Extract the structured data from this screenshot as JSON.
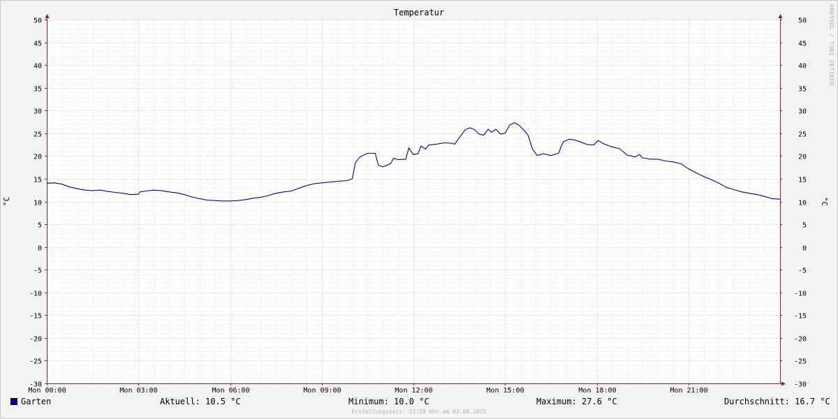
{
  "chart_data": {
    "type": "line",
    "title": "Temperatur",
    "ylabel": "°C",
    "xlabel": "",
    "ylim": [
      -30,
      50
    ],
    "yticks": [
      -30,
      -25,
      -20,
      -15,
      -10,
      -5,
      0,
      5,
      10,
      15,
      20,
      25,
      30,
      35,
      40,
      45,
      50
    ],
    "xlim_hours": [
      0,
      24
    ],
    "xticks": [
      {
        "hour": 0,
        "label": "Mon 00:00"
      },
      {
        "hour": 3,
        "label": "Mon 03:00"
      },
      {
        "hour": 6,
        "label": "Mon 06:00"
      },
      {
        "hour": 9,
        "label": "Mon 09:00"
      },
      {
        "hour": 12,
        "label": "Mon 12:00"
      },
      {
        "hour": 15,
        "label": "Mon 15:00"
      },
      {
        "hour": 18,
        "label": "Mon 18:00"
      },
      {
        "hour": 21,
        "label": "Mon 21:00"
      }
    ],
    "grid": true,
    "legend_position": "bottom-left",
    "series": [
      {
        "name": "Garten",
        "color": "#0000a0",
        "points": [
          [
            0.0,
            14.0
          ],
          [
            0.25,
            14.1
          ],
          [
            0.5,
            13.8
          ],
          [
            0.75,
            13.2
          ],
          [
            1.0,
            12.8
          ],
          [
            1.25,
            12.5
          ],
          [
            1.5,
            12.4
          ],
          [
            1.75,
            12.5
          ],
          [
            2.0,
            12.2
          ],
          [
            2.25,
            12.0
          ],
          [
            2.5,
            11.8
          ],
          [
            2.75,
            11.5
          ],
          [
            3.0,
            11.6
          ],
          [
            3.05,
            12.1
          ],
          [
            3.25,
            12.3
          ],
          [
            3.5,
            12.5
          ],
          [
            3.75,
            12.4
          ],
          [
            4.0,
            12.1
          ],
          [
            4.25,
            11.9
          ],
          [
            4.5,
            11.5
          ],
          [
            4.75,
            11.0
          ],
          [
            5.0,
            10.6
          ],
          [
            5.25,
            10.3
          ],
          [
            5.5,
            10.2
          ],
          [
            5.75,
            10.1
          ],
          [
            6.0,
            10.1
          ],
          [
            6.25,
            10.2
          ],
          [
            6.5,
            10.4
          ],
          [
            6.75,
            10.7
          ],
          [
            7.0,
            10.9
          ],
          [
            7.25,
            11.3
          ],
          [
            7.5,
            11.8
          ],
          [
            7.75,
            12.1
          ],
          [
            8.0,
            12.3
          ],
          [
            8.25,
            12.9
          ],
          [
            8.5,
            13.5
          ],
          [
            8.75,
            13.9
          ],
          [
            9.0,
            14.1
          ],
          [
            9.5,
            14.4
          ],
          [
            9.85,
            14.6
          ],
          [
            10.0,
            15.0
          ],
          [
            10.1,
            18.5
          ],
          [
            10.25,
            19.8
          ],
          [
            10.5,
            20.6
          ],
          [
            10.75,
            20.6
          ],
          [
            10.85,
            18.0
          ],
          [
            11.0,
            17.6
          ],
          [
            11.25,
            18.3
          ],
          [
            11.35,
            19.5
          ],
          [
            11.5,
            19.2
          ],
          [
            11.75,
            19.3
          ],
          [
            11.85,
            21.8
          ],
          [
            12.0,
            20.3
          ],
          [
            12.15,
            20.5
          ],
          [
            12.25,
            22.2
          ],
          [
            12.4,
            21.5
          ],
          [
            12.5,
            22.4
          ],
          [
            12.75,
            22.6
          ],
          [
            13.0,
            22.9
          ],
          [
            13.25,
            22.8
          ],
          [
            13.35,
            22.6
          ],
          [
            13.5,
            24.0
          ],
          [
            13.7,
            25.8
          ],
          [
            13.85,
            26.2
          ],
          [
            14.0,
            25.8
          ],
          [
            14.15,
            24.8
          ],
          [
            14.3,
            24.6
          ],
          [
            14.45,
            25.9
          ],
          [
            14.55,
            25.2
          ],
          [
            14.7,
            25.9
          ],
          [
            14.85,
            24.8
          ],
          [
            15.0,
            25.0
          ],
          [
            15.15,
            26.8
          ],
          [
            15.3,
            27.3
          ],
          [
            15.45,
            26.8
          ],
          [
            15.6,
            25.8
          ],
          [
            15.75,
            24.6
          ],
          [
            15.9,
            21.5
          ],
          [
            16.05,
            20.1
          ],
          [
            16.25,
            20.5
          ],
          [
            16.5,
            20.1
          ],
          [
            16.75,
            20.6
          ],
          [
            16.9,
            23.1
          ],
          [
            17.1,
            23.7
          ],
          [
            17.3,
            23.5
          ],
          [
            17.5,
            23.0
          ],
          [
            17.7,
            22.5
          ],
          [
            17.9,
            22.4
          ],
          [
            18.05,
            23.4
          ],
          [
            18.25,
            22.6
          ],
          [
            18.5,
            22.0
          ],
          [
            18.75,
            21.6
          ],
          [
            19.0,
            20.2
          ],
          [
            19.25,
            19.8
          ],
          [
            19.4,
            20.3
          ],
          [
            19.5,
            19.6
          ],
          [
            19.75,
            19.3
          ],
          [
            20.0,
            19.3
          ],
          [
            20.25,
            18.9
          ],
          [
            20.5,
            18.7
          ],
          [
            20.75,
            18.3
          ],
          [
            21.0,
            17.2
          ],
          [
            21.25,
            16.3
          ],
          [
            21.5,
            15.5
          ],
          [
            21.75,
            14.8
          ],
          [
            22.0,
            14.0
          ],
          [
            22.25,
            13.1
          ],
          [
            22.5,
            12.6
          ],
          [
            22.75,
            12.1
          ],
          [
            23.0,
            11.8
          ],
          [
            23.25,
            11.5
          ],
          [
            23.5,
            11.1
          ],
          [
            23.75,
            10.6
          ],
          [
            24.0,
            10.5
          ]
        ]
      }
    ]
  },
  "legend": {
    "series_name": "Garten",
    "aktuell": "Aktuell: 10.5 °C",
    "minimum": "Minimum: 10.0 °C",
    "maximum": "Maximum: 27.6 °C",
    "durchschnitt": "Durchschnitt: 16.7 °C"
  },
  "watermark": "RRDTOOL / TOBI OETIKER",
  "footer": "Erstellungszeit: 23:58 Uhr am 02.06.2025",
  "colors": {
    "line": "#0000a0",
    "major_grid": "#f0a0a0",
    "minor_grid": "#c8c8c8",
    "axis": "#8b2020",
    "plot_background": "#ffffff"
  }
}
